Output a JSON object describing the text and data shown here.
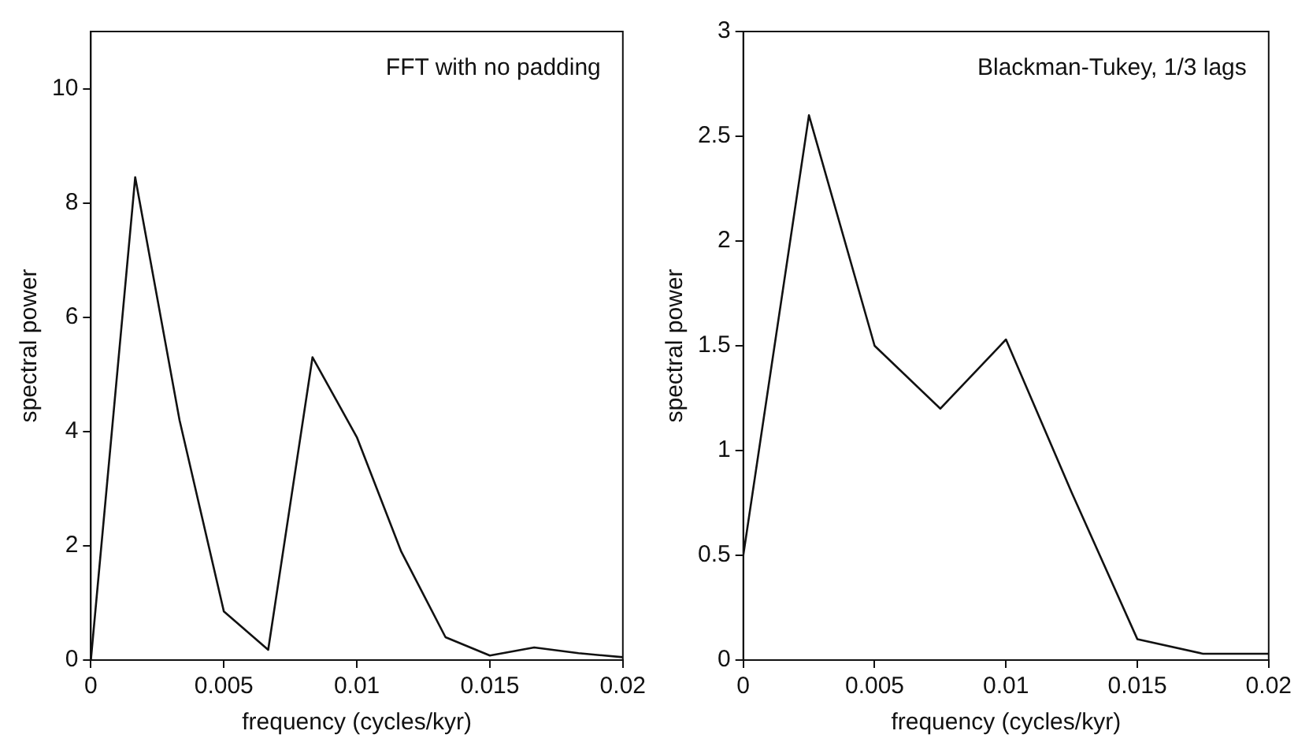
{
  "chart_data": [
    {
      "type": "line",
      "annotations": [
        "FFT with no padding"
      ],
      "xlabel": "frequency (cycles/kyr)",
      "ylabel": "spectral power",
      "x": [
        0,
        0.001667,
        0.003333,
        0.005,
        0.006667,
        0.008333,
        0.01,
        0.011667,
        0.013333,
        0.015,
        0.016667,
        0.018333,
        0.02
      ],
      "series": [
        {
          "color": "#111111",
          "values": [
            0,
            8.45,
            4.2,
            0.85,
            0.18,
            5.3,
            3.9,
            1.9,
            0.4,
            0.08,
            0.22,
            0.12,
            0.05
          ]
        }
      ],
      "xlim": [
        0,
        0.02
      ],
      "xticks": [
        0,
        0.005,
        0.01,
        0.015,
        0.02
      ],
      "ylim": [
        0,
        11
      ],
      "yticks": [
        0,
        2,
        4,
        6,
        8,
        10
      ],
      "grid": false,
      "legend": false,
      "marker": "none",
      "line_style": "solid"
    },
    {
      "type": "line",
      "annotations": [
        "Blackman-Tukey, 1/3 lags"
      ],
      "xlabel": "frequency (cycles/kyr)",
      "ylabel": "spectral power",
      "x": [
        0,
        0.0025,
        0.005,
        0.0075,
        0.01,
        0.0125,
        0.015,
        0.0175,
        0.02
      ],
      "series": [
        {
          "color": "#111111",
          "values": [
            0.5,
            2.6,
            1.5,
            1.2,
            1.53,
            0.8,
            0.1,
            0.03,
            0.03
          ]
        }
      ],
      "xlim": [
        0,
        0.02
      ],
      "xticks": [
        0,
        0.005,
        0.01,
        0.015,
        0.02
      ],
      "ylim": [
        0,
        3
      ],
      "yticks": [
        0,
        0.5,
        1,
        1.5,
        2,
        2.5,
        3
      ],
      "grid": false,
      "legend": false,
      "marker": "none",
      "line_style": "solid"
    }
  ]
}
